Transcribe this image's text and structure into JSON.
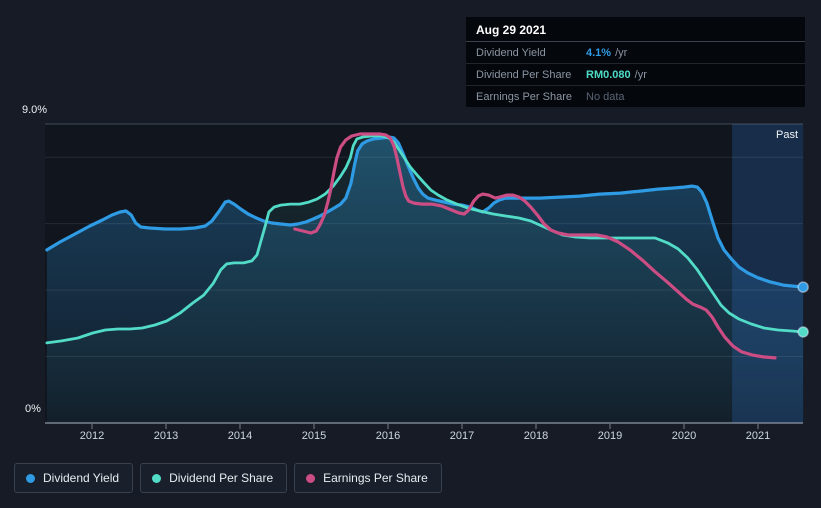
{
  "page": {
    "background": "#161b26",
    "plot_background": "#10151e"
  },
  "tooltip": {
    "date": "Aug 29 2021",
    "rows": [
      {
        "label": "Dividend Yield",
        "value": "4.1%",
        "unit": "/yr",
        "value_color": "#2e9be4"
      },
      {
        "label": "Dividend Per Share",
        "value": "RM0.080",
        "unit": "/yr",
        "value_color": "#4fdcc7"
      },
      {
        "label": "Earnings Per Share",
        "value": "No data",
        "unit": "",
        "value_color": "#5a6474"
      }
    ]
  },
  "legend": [
    {
      "label": "Dividend Yield",
      "color": "#2e9be4"
    },
    {
      "label": "Dividend Per Share",
      "color": "#52dcc8"
    },
    {
      "label": "Earnings Per Share",
      "color": "#cc4d84"
    }
  ],
  "chart_data": {
    "type": "line",
    "title": "Dividend history chart",
    "x_axis": {
      "ticks": [
        2012,
        2013,
        2014,
        2015,
        2016,
        2017,
        2018,
        2019,
        2020,
        2021
      ],
      "labels": [
        "2012",
        "2013",
        "2014",
        "2015",
        "2016",
        "2017",
        "2018",
        "2019",
        "2020",
        "2021"
      ],
      "range": [
        2011.36,
        2021.61
      ]
    },
    "y_axis": {
      "min": 0,
      "max": 9,
      "unit": "%",
      "top_label": "9.0%",
      "bottom_label": "0%",
      "gridline_values": [
        8,
        6,
        4,
        2
      ]
    },
    "past_band": {
      "label": "Past",
      "start": 2020.65,
      "end": 2021.61,
      "color": "#2f6cba"
    },
    "series": [
      {
        "name": "Dividend Yield",
        "color": "#2e9be4",
        "end_dot": true,
        "points": [
          [
            2011.39,
            5.21
          ],
          [
            2011.57,
            5.45
          ],
          [
            2011.77,
            5.69
          ],
          [
            2011.97,
            5.93
          ],
          [
            2012.14,
            6.11
          ],
          [
            2012.27,
            6.26
          ],
          [
            2012.38,
            6.35
          ],
          [
            2012.46,
            6.38
          ],
          [
            2012.53,
            6.26
          ],
          [
            2012.59,
            6.02
          ],
          [
            2012.66,
            5.9
          ],
          [
            2012.78,
            5.87
          ],
          [
            2012.99,
            5.84
          ],
          [
            2013.19,
            5.84
          ],
          [
            2013.39,
            5.87
          ],
          [
            2013.53,
            5.93
          ],
          [
            2013.62,
            6.08
          ],
          [
            2013.72,
            6.38
          ],
          [
            2013.8,
            6.65
          ],
          [
            2013.85,
            6.68
          ],
          [
            2013.92,
            6.59
          ],
          [
            2014.01,
            6.44
          ],
          [
            2014.11,
            6.29
          ],
          [
            2014.22,
            6.17
          ],
          [
            2014.32,
            6.08
          ],
          [
            2014.43,
            6.02
          ],
          [
            2014.55,
            5.99
          ],
          [
            2014.68,
            5.96
          ],
          [
            2014.78,
            5.99
          ],
          [
            2014.89,
            6.05
          ],
          [
            2014.99,
            6.14
          ],
          [
            2015.08,
            6.23
          ],
          [
            2015.18,
            6.35
          ],
          [
            2015.27,
            6.47
          ],
          [
            2015.36,
            6.59
          ],
          [
            2015.43,
            6.77
          ],
          [
            2015.5,
            7.22
          ],
          [
            2015.55,
            7.8
          ],
          [
            2015.59,
            8.19
          ],
          [
            2015.65,
            8.4
          ],
          [
            2015.72,
            8.49
          ],
          [
            2015.81,
            8.55
          ],
          [
            2015.92,
            8.58
          ],
          [
            2016.01,
            8.61
          ],
          [
            2016.08,
            8.58
          ],
          [
            2016.14,
            8.43
          ],
          [
            2016.2,
            8.13
          ],
          [
            2016.27,
            7.74
          ],
          [
            2016.34,
            7.38
          ],
          [
            2016.41,
            7.07
          ],
          [
            2016.47,
            6.89
          ],
          [
            2016.54,
            6.77
          ],
          [
            2016.64,
            6.71
          ],
          [
            2016.76,
            6.65
          ],
          [
            2016.88,
            6.59
          ],
          [
            2017.0,
            6.56
          ],
          [
            2017.11,
            6.5
          ],
          [
            2017.2,
            6.41
          ],
          [
            2017.28,
            6.35
          ],
          [
            2017.36,
            6.47
          ],
          [
            2017.43,
            6.62
          ],
          [
            2017.5,
            6.71
          ],
          [
            2017.59,
            6.77
          ],
          [
            2017.78,
            6.77
          ],
          [
            2018.05,
            6.77
          ],
          [
            2018.32,
            6.8
          ],
          [
            2018.59,
            6.83
          ],
          [
            2018.86,
            6.89
          ],
          [
            2019.14,
            6.92
          ],
          [
            2019.41,
            6.98
          ],
          [
            2019.65,
            7.04
          ],
          [
            2019.84,
            7.07
          ],
          [
            2020.0,
            7.1
          ],
          [
            2020.11,
            7.13
          ],
          [
            2020.18,
            7.1
          ],
          [
            2020.24,
            6.95
          ],
          [
            2020.31,
            6.62
          ],
          [
            2020.38,
            6.11
          ],
          [
            2020.46,
            5.57
          ],
          [
            2020.54,
            5.21
          ],
          [
            2020.64,
            4.94
          ],
          [
            2020.74,
            4.7
          ],
          [
            2020.86,
            4.52
          ],
          [
            2021.0,
            4.37
          ],
          [
            2021.16,
            4.25
          ],
          [
            2021.34,
            4.15
          ],
          [
            2021.61,
            4.09
          ]
        ]
      },
      {
        "name": "Dividend Per Share",
        "color": "#52dcc8",
        "end_dot": true,
        "points": [
          [
            2011.39,
            2.41
          ],
          [
            2011.59,
            2.47
          ],
          [
            2011.81,
            2.56
          ],
          [
            2012.01,
            2.71
          ],
          [
            2012.18,
            2.8
          ],
          [
            2012.35,
            2.83
          ],
          [
            2012.51,
            2.83
          ],
          [
            2012.68,
            2.86
          ],
          [
            2012.85,
            2.95
          ],
          [
            2013.01,
            3.07
          ],
          [
            2013.19,
            3.31
          ],
          [
            2013.36,
            3.61
          ],
          [
            2013.51,
            3.85
          ],
          [
            2013.64,
            4.21
          ],
          [
            2013.74,
            4.61
          ],
          [
            2013.82,
            4.79
          ],
          [
            2013.92,
            4.82
          ],
          [
            2014.05,
            4.82
          ],
          [
            2014.16,
            4.88
          ],
          [
            2014.23,
            5.06
          ],
          [
            2014.28,
            5.45
          ],
          [
            2014.34,
            5.93
          ],
          [
            2014.39,
            6.35
          ],
          [
            2014.46,
            6.5
          ],
          [
            2014.55,
            6.56
          ],
          [
            2014.68,
            6.59
          ],
          [
            2014.81,
            6.59
          ],
          [
            2014.93,
            6.65
          ],
          [
            2015.04,
            6.74
          ],
          [
            2015.15,
            6.89
          ],
          [
            2015.26,
            7.13
          ],
          [
            2015.35,
            7.4
          ],
          [
            2015.43,
            7.68
          ],
          [
            2015.49,
            7.98
          ],
          [
            2015.53,
            8.34
          ],
          [
            2015.58,
            8.55
          ],
          [
            2015.66,
            8.61
          ],
          [
            2015.78,
            8.64
          ],
          [
            2015.92,
            8.64
          ],
          [
            2016.01,
            8.58
          ],
          [
            2016.08,
            8.46
          ],
          [
            2016.15,
            8.22
          ],
          [
            2016.22,
            7.98
          ],
          [
            2016.3,
            7.71
          ],
          [
            2016.39,
            7.47
          ],
          [
            2016.49,
            7.22
          ],
          [
            2016.58,
            7.01
          ],
          [
            2016.68,
            6.86
          ],
          [
            2016.8,
            6.71
          ],
          [
            2016.93,
            6.59
          ],
          [
            2017.08,
            6.47
          ],
          [
            2017.24,
            6.38
          ],
          [
            2017.42,
            6.29
          ],
          [
            2017.59,
            6.23
          ],
          [
            2017.77,
            6.17
          ],
          [
            2017.93,
            6.08
          ],
          [
            2018.08,
            5.93
          ],
          [
            2018.23,
            5.78
          ],
          [
            2018.36,
            5.66
          ],
          [
            2018.53,
            5.6
          ],
          [
            2018.73,
            5.57
          ],
          [
            2019.0,
            5.57
          ],
          [
            2019.34,
            5.57
          ],
          [
            2019.61,
            5.57
          ],
          [
            2019.78,
            5.42
          ],
          [
            2019.92,
            5.24
          ],
          [
            2020.05,
            4.97
          ],
          [
            2020.18,
            4.61
          ],
          [
            2020.3,
            4.21
          ],
          [
            2020.41,
            3.85
          ],
          [
            2020.5,
            3.55
          ],
          [
            2020.61,
            3.31
          ],
          [
            2020.74,
            3.13
          ],
          [
            2020.91,
            2.98
          ],
          [
            2021.08,
            2.86
          ],
          [
            2021.27,
            2.8
          ],
          [
            2021.46,
            2.77
          ],
          [
            2021.61,
            2.74
          ]
        ]
      },
      {
        "name": "Earnings Per Share",
        "color": "#cc4d84",
        "end_dot": false,
        "points": [
          [
            2014.74,
            5.84
          ],
          [
            2014.85,
            5.78
          ],
          [
            2014.96,
            5.72
          ],
          [
            2015.03,
            5.78
          ],
          [
            2015.08,
            5.96
          ],
          [
            2015.14,
            6.26
          ],
          [
            2015.19,
            6.68
          ],
          [
            2015.23,
            7.07
          ],
          [
            2015.27,
            7.56
          ],
          [
            2015.31,
            7.98
          ],
          [
            2015.36,
            8.31
          ],
          [
            2015.43,
            8.52
          ],
          [
            2015.51,
            8.64
          ],
          [
            2015.62,
            8.7
          ],
          [
            2015.76,
            8.7
          ],
          [
            2015.89,
            8.7
          ],
          [
            2015.97,
            8.67
          ],
          [
            2016.03,
            8.58
          ],
          [
            2016.08,
            8.34
          ],
          [
            2016.12,
            7.98
          ],
          [
            2016.16,
            7.56
          ],
          [
            2016.2,
            7.13
          ],
          [
            2016.24,
            6.83
          ],
          [
            2016.28,
            6.68
          ],
          [
            2016.35,
            6.62
          ],
          [
            2016.46,
            6.59
          ],
          [
            2016.59,
            6.59
          ],
          [
            2016.73,
            6.53
          ],
          [
            2016.86,
            6.41
          ],
          [
            2016.96,
            6.32
          ],
          [
            2017.03,
            6.29
          ],
          [
            2017.09,
            6.41
          ],
          [
            2017.16,
            6.68
          ],
          [
            2017.22,
            6.83
          ],
          [
            2017.28,
            6.89
          ],
          [
            2017.36,
            6.86
          ],
          [
            2017.45,
            6.77
          ],
          [
            2017.51,
            6.8
          ],
          [
            2017.61,
            6.86
          ],
          [
            2017.69,
            6.86
          ],
          [
            2017.77,
            6.8
          ],
          [
            2017.85,
            6.68
          ],
          [
            2017.93,
            6.5
          ],
          [
            2018.03,
            6.23
          ],
          [
            2018.11,
            5.99
          ],
          [
            2018.2,
            5.81
          ],
          [
            2018.3,
            5.72
          ],
          [
            2018.43,
            5.66
          ],
          [
            2018.62,
            5.66
          ],
          [
            2018.82,
            5.66
          ],
          [
            2018.96,
            5.6
          ],
          [
            2019.11,
            5.45
          ],
          [
            2019.27,
            5.21
          ],
          [
            2019.45,
            4.88
          ],
          [
            2019.61,
            4.55
          ],
          [
            2019.77,
            4.25
          ],
          [
            2019.91,
            3.97
          ],
          [
            2020.03,
            3.73
          ],
          [
            2020.12,
            3.58
          ],
          [
            2020.22,
            3.49
          ],
          [
            2020.3,
            3.4
          ],
          [
            2020.38,
            3.19
          ],
          [
            2020.46,
            2.89
          ],
          [
            2020.55,
            2.59
          ],
          [
            2020.66,
            2.32
          ],
          [
            2020.78,
            2.14
          ],
          [
            2020.92,
            2.05
          ],
          [
            2021.07,
            1.99
          ],
          [
            2021.23,
            1.96
          ]
        ]
      }
    ]
  }
}
